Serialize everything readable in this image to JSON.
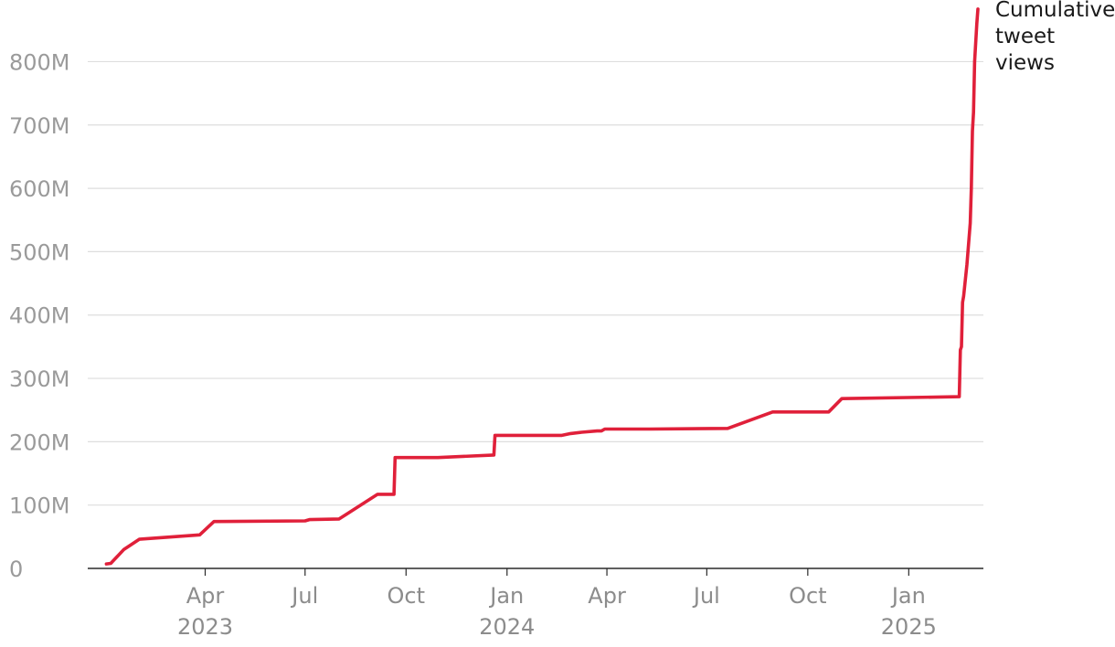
{
  "chart_data": {
    "type": "line",
    "title": "",
    "xlabel": "",
    "ylabel": "",
    "grid": true,
    "colors": {
      "line": "#e0203a"
    },
    "ylim": [
      0,
      880000000
    ],
    "xlim": [
      "2022-12-15",
      "2025-03-10"
    ],
    "y_ticks": [
      {
        "value": 0,
        "label": "0"
      },
      {
        "value": 100000000,
        "label": "100M"
      },
      {
        "value": 200000000,
        "label": "200M"
      },
      {
        "value": 300000000,
        "label": "300M"
      },
      {
        "value": 400000000,
        "label": "400M"
      },
      {
        "value": 500000000,
        "label": "500M"
      },
      {
        "value": 600000000,
        "label": "600M"
      },
      {
        "value": 700000000,
        "label": "700M"
      },
      {
        "value": 800000000,
        "label": "800M"
      }
    ],
    "x_ticks": [
      {
        "date": "2023-04-01",
        "label": "Apr",
        "year": "2023"
      },
      {
        "date": "2023-07-01",
        "label": "Jul",
        "year": ""
      },
      {
        "date": "2023-10-01",
        "label": "Oct",
        "year": ""
      },
      {
        "date": "2024-01-01",
        "label": "Jan",
        "year": "2024"
      },
      {
        "date": "2024-04-01",
        "label": "Apr",
        "year": ""
      },
      {
        "date": "2024-07-01",
        "label": "Jul",
        "year": ""
      },
      {
        "date": "2024-10-01",
        "label": "Oct",
        "year": ""
      },
      {
        "date": "2025-01-01",
        "label": "Jan",
        "year": "2025"
      }
    ],
    "series": [
      {
        "name": "Cumulative tweet views",
        "name_lines": [
          "Cumulative",
          "tweet",
          "views"
        ],
        "points": [
          [
            "2023-01-01",
            7000000
          ],
          [
            "2023-01-05",
            8000000
          ],
          [
            "2023-01-17",
            30000000
          ],
          [
            "2023-01-31",
            46000000
          ],
          [
            "2023-03-27",
            53000000
          ],
          [
            "2023-04-09",
            74000000
          ],
          [
            "2023-07-01",
            75000000
          ],
          [
            "2023-07-05",
            77000000
          ],
          [
            "2023-08-01",
            78000000
          ],
          [
            "2023-09-05",
            117000000
          ],
          [
            "2023-09-20",
            117000000
          ],
          [
            "2023-09-21",
            175000000
          ],
          [
            "2023-10-30",
            175000000
          ],
          [
            "2023-12-20",
            179000000
          ],
          [
            "2023-12-21",
            210000000
          ],
          [
            "2024-02-20",
            210000000
          ],
          [
            "2024-02-28",
            213000000
          ],
          [
            "2024-03-09",
            215000000
          ],
          [
            "2024-03-23",
            217000000
          ],
          [
            "2024-03-27",
            217000000
          ],
          [
            "2024-03-30",
            220000000
          ],
          [
            "2024-05-10",
            220000000
          ],
          [
            "2024-07-20",
            221000000
          ],
          [
            "2024-08-30",
            247000000
          ],
          [
            "2024-10-20",
            247000000
          ],
          [
            "2024-11-01",
            268000000
          ],
          [
            "2025-02-16",
            271000000
          ],
          [
            "2025-02-17",
            345000000
          ],
          [
            "2025-02-18",
            350000000
          ],
          [
            "2025-02-19",
            420000000
          ],
          [
            "2025-02-20",
            430000000
          ],
          [
            "2025-02-23",
            480000000
          ],
          [
            "2025-02-26",
            545000000
          ],
          [
            "2025-02-27",
            600000000
          ],
          [
            "2025-02-28",
            690000000
          ],
          [
            "2025-03-01",
            720000000
          ],
          [
            "2025-03-02",
            800000000
          ],
          [
            "2025-03-04",
            860000000
          ],
          [
            "2025-03-05",
            883000000
          ]
        ]
      }
    ]
  }
}
